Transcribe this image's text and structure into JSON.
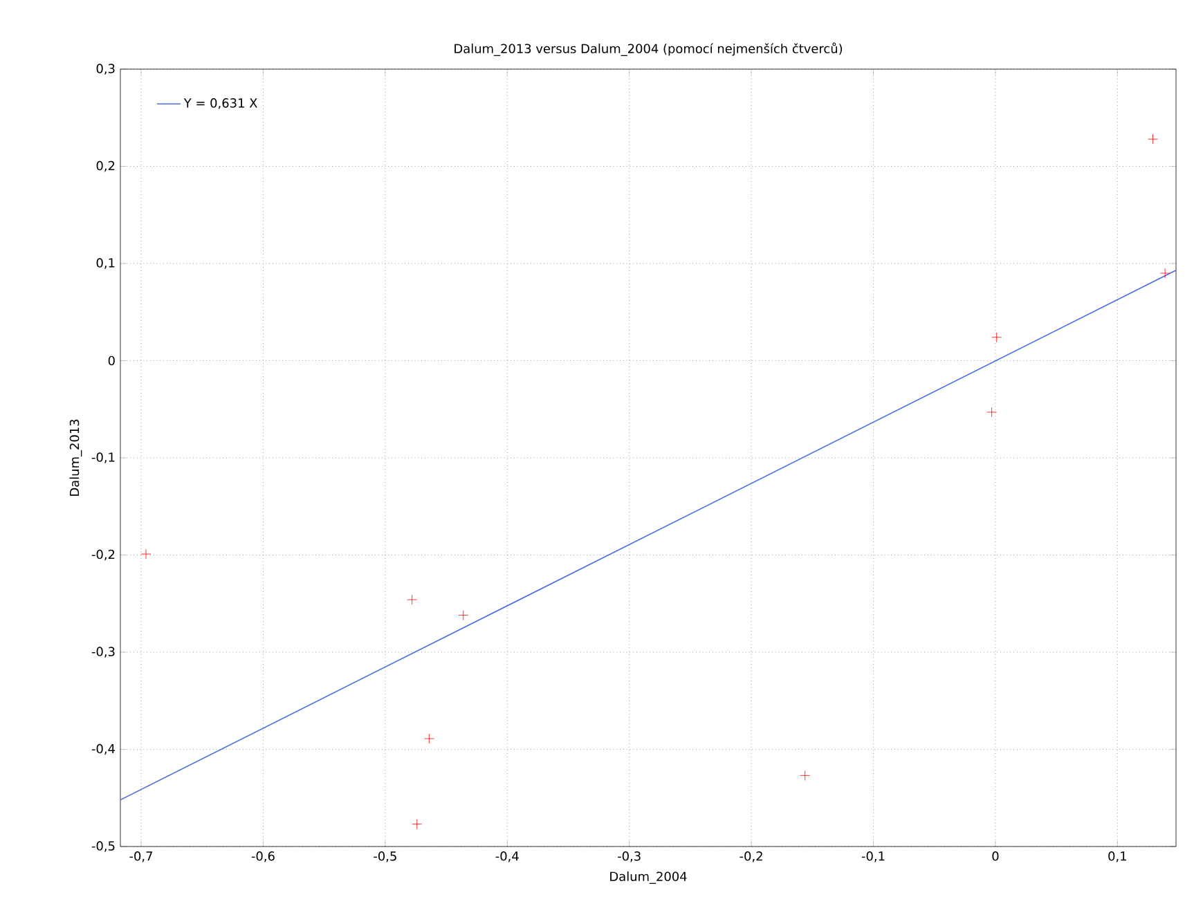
{
  "chart_data": {
    "type": "scatter",
    "title": "Dalum_2013 versus Dalum_2004 (pomocí nejmenších čtverců)",
    "xlabel": "Dalum_2004",
    "ylabel": "Dalum_2013",
    "series": [
      {
        "color": "#ff0000",
        "marker": "cross",
        "x": [
          -0.696,
          -0.478,
          -0.436,
          -0.464,
          -0.474,
          -0.156,
          -0.003,
          0.001,
          0.129,
          0.139
        ],
        "values": [
          -0.199,
          -0.246,
          -0.262,
          -0.389,
          -0.477,
          -0.427,
          -0.053,
          0.024,
          0.228,
          0.09
        ]
      },
      {
        "type": "line",
        "name": "Y = 0,631 X",
        "color": "#4a6fe3",
        "line_style": "solid",
        "x": [
          -0.717,
          0.148
        ],
        "values": [
          -0.452,
          0.093
        ]
      }
    ],
    "xlim": [
      -0.717,
      0.148
    ],
    "ylim": [
      -0.5,
      0.3
    ],
    "xticks": [
      {
        "value": -0.7,
        "label": "-0,7"
      },
      {
        "value": -0.6,
        "label": "-0,6"
      },
      {
        "value": -0.5,
        "label": "-0,5"
      },
      {
        "value": -0.4,
        "label": "-0,4"
      },
      {
        "value": -0.3,
        "label": "-0,3"
      },
      {
        "value": -0.2,
        "label": "-0,2"
      },
      {
        "value": -0.1,
        "label": "-0,1"
      },
      0,
      {
        "value": 0.1,
        "label": "0,1"
      }
    ],
    "yticks": [
      {
        "value": -0.5,
        "label": "-0,5"
      },
      {
        "value": -0.4,
        "label": "-0,4"
      },
      {
        "value": -0.3,
        "label": "-0,3"
      },
      {
        "value": -0.2,
        "label": "-0,2"
      },
      {
        "value": -0.1,
        "label": "-0,1"
      },
      0,
      {
        "value": 0.1,
        "label": "0,1"
      },
      {
        "value": 0.2,
        "label": "0,2"
      },
      {
        "value": 0.3,
        "label": "0,3"
      }
    ],
    "grid": true,
    "legend": "top left"
  }
}
